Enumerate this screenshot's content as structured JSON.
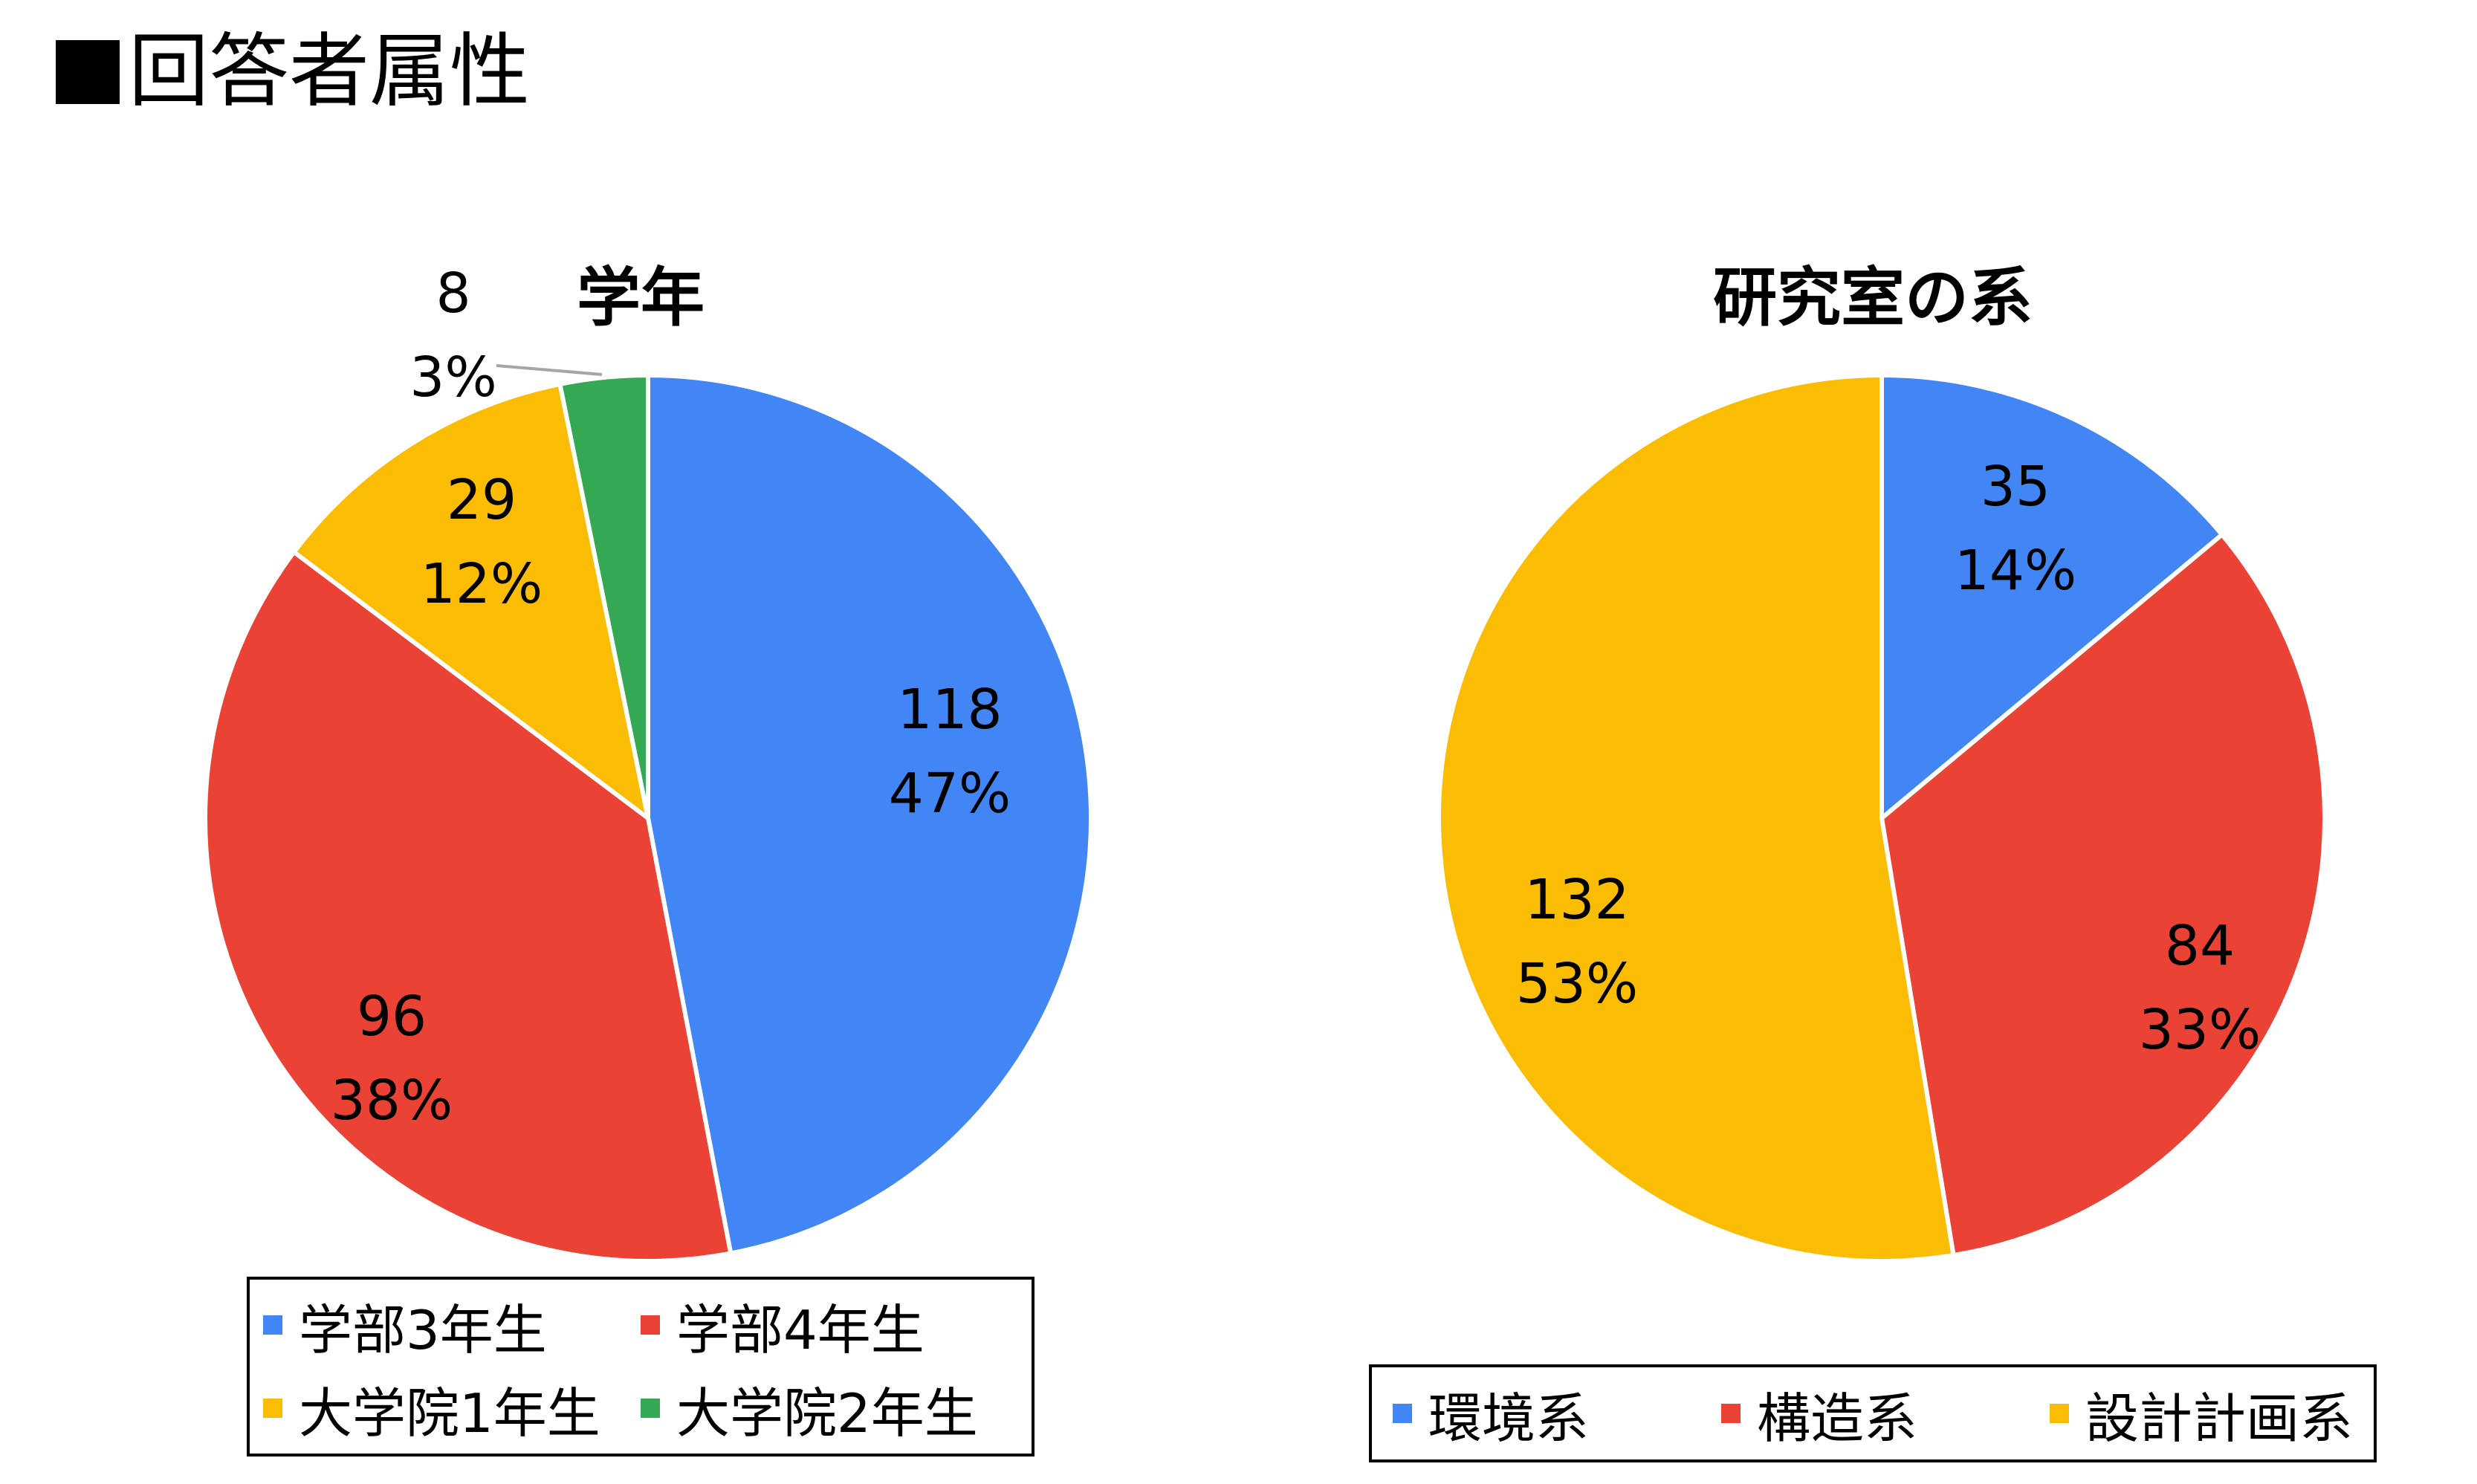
{
  "page": {
    "heading": "回答者属性"
  },
  "chart_data": [
    {
      "type": "pie",
      "title": "学年",
      "categories": [
        "学部3年生",
        "学部4年生",
        "大学院1年生",
        "大学院2年生"
      ],
      "values": [
        118,
        96,
        29,
        8
      ],
      "percent_labels": [
        "47%",
        "38%",
        "12%",
        "3%"
      ],
      "colors": [
        "#4285f4",
        "#ea4335",
        "#fbbc04",
        "#34a853"
      ],
      "legend_position": "bottom"
    },
    {
      "type": "pie",
      "title": "研究室の系",
      "categories": [
        "環境系",
        "構造系",
        "設計計画系"
      ],
      "values": [
        35,
        84,
        132
      ],
      "percent_labels": [
        "14%",
        "33%",
        "53%"
      ],
      "colors": [
        "#4285f4",
        "#ea4335",
        "#fbbc04"
      ],
      "legend_position": "bottom"
    }
  ]
}
